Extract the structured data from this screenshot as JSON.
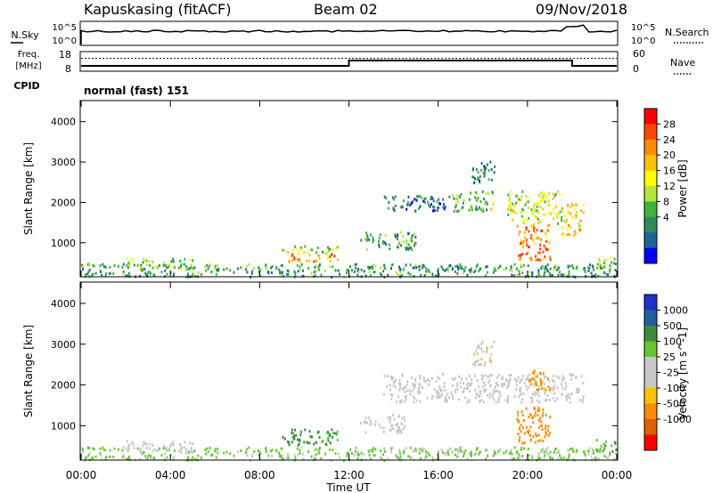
{
  "header": {
    "station": "Kapuskasing (fitACF)",
    "beam": "Beam 02",
    "date": "09/Nov/2018"
  },
  "noise_panel": {
    "left_label": "N.Sky",
    "right_label": "N.Search",
    "left_ticks": [
      "10^5",
      "10^0"
    ],
    "right_ticks": [
      "10^5",
      "10^0"
    ]
  },
  "freq_panel": {
    "left_label_line1": "Freq.",
    "left_label_line2": "[MHz]",
    "right_label": "Nave",
    "left_ticks": [
      "18",
      "8"
    ],
    "right_ticks": [
      "60",
      "0"
    ]
  },
  "cpid": {
    "label": "CPID",
    "value": "normal (fast) 151"
  },
  "axes": {
    "y_label": "Slant Range [km]",
    "y_ticks": [
      "4000",
      "3000",
      "2000",
      "1000"
    ],
    "x_label": "Time UT",
    "x_ticks": [
      "00:00",
      "04:00",
      "08:00",
      "12:00",
      "16:00",
      "20:00",
      "00:00"
    ]
  },
  "power_scale": {
    "label": "Power [dB]",
    "ticks": [
      "28",
      "24",
      "20",
      "16",
      "12",
      "8",
      "4"
    ],
    "colors": [
      "#ff0000",
      "#ff4500",
      "#ff8c00",
      "#ffc000",
      "#ffff00",
      "#b4e63c",
      "#3cb43c",
      "#2e8b57",
      "#1e6496",
      "#0000ff"
    ]
  },
  "velocity_scale": {
    "label": "Velocity [m s^-1]",
    "ticks": [
      "1000",
      "500",
      "100",
      "25",
      "-25",
      "-100",
      "-500",
      "-1000"
    ],
    "colors": [
      "#1e32c8",
      "#2060a0",
      "#3c8c3c",
      "#64c832",
      "#c8c8c8",
      "#c8c8c8",
      "#ffc000",
      "#ff8c00",
      "#e06000",
      "#ff0000"
    ]
  },
  "chart_data": {
    "type": "heatmap",
    "x_range_hours": [
      0,
      24
    ],
    "y_range_km": [
      180,
      4500
    ],
    "freq_mhz": [
      {
        "start_h": 0,
        "end_h": 12,
        "value": 10.5
      },
      {
        "start_h": 12,
        "end_h": 22,
        "value": 13.5
      },
      {
        "start_h": 22,
        "end_h": 24,
        "value": 10.5
      }
    ],
    "nave_level": 40,
    "power_regions": [
      {
        "t0": 0.0,
        "t1": 24.0,
        "r0": 180,
        "r1": 500,
        "dB": 10
      },
      {
        "t0": 2.0,
        "t1": 5.0,
        "r0": 350,
        "r1": 650,
        "dB": 14
      },
      {
        "t0": 9.0,
        "t1": 11.5,
        "r0": 550,
        "r1": 750,
        "dB": 24
      },
      {
        "t0": 9.0,
        "t1": 11.5,
        "r0": 750,
        "r1": 950,
        "dB": 14
      },
      {
        "t0": 12.5,
        "t1": 15.0,
        "r0": 850,
        "r1": 1300,
        "dB": 10
      },
      {
        "t0": 13.5,
        "t1": 16.5,
        "r0": 1800,
        "r1": 2200,
        "dB": 8
      },
      {
        "t0": 16.5,
        "t1": 18.5,
        "r0": 1800,
        "r1": 2300,
        "dB": 12
      },
      {
        "t0": 17.5,
        "t1": 18.5,
        "r0": 2500,
        "r1": 3100,
        "dB": 8
      },
      {
        "t0": 19.0,
        "t1": 21.5,
        "r0": 1500,
        "r1": 2300,
        "dB": 16
      },
      {
        "t0": 19.5,
        "t1": 21.0,
        "r0": 600,
        "r1": 1500,
        "dB": 24
      },
      {
        "t0": 21.5,
        "t1": 22.5,
        "r0": 1200,
        "r1": 2000,
        "dB": 20
      },
      {
        "t0": 23.0,
        "t1": 24.0,
        "r0": 400,
        "r1": 700,
        "dB": 14
      }
    ],
    "velocity_regions": [
      {
        "t0": 0.0,
        "t1": 24.0,
        "r0": 180,
        "r1": 500,
        "v": 30
      },
      {
        "t0": 2.0,
        "t1": 5.0,
        "r0": 350,
        "r1": 650,
        "v": 0
      },
      {
        "t0": 9.0,
        "t1": 11.5,
        "r0": 550,
        "r1": 950,
        "v": 80
      },
      {
        "t0": 12.5,
        "t1": 14.5,
        "r0": 850,
        "r1": 1300,
        "v": 0
      },
      {
        "t0": 13.5,
        "t1": 22.5,
        "r0": 1600,
        "r1": 2300,
        "v": 0
      },
      {
        "t0": 17.5,
        "t1": 18.5,
        "r0": 2500,
        "r1": 3100,
        "v": -10
      },
      {
        "t0": 19.5,
        "t1": 21.0,
        "r0": 600,
        "r1": 1500,
        "v": -300
      },
      {
        "t0": 20.0,
        "t1": 21.0,
        "r0": 1900,
        "r1": 2400,
        "v": -150
      },
      {
        "t0": 23.0,
        "t1": 24.0,
        "r0": 400,
        "r1": 700,
        "v": 60
      }
    ]
  }
}
